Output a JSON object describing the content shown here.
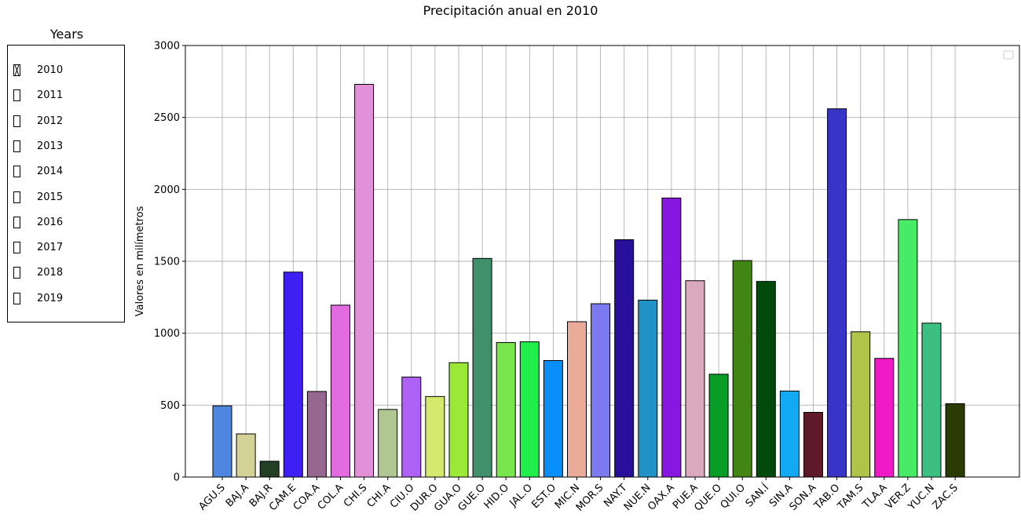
{
  "chart_data": {
    "type": "bar",
    "title": "Precipitación anual en 2010",
    "xlabel": "",
    "ylabel": "Valores en milímetros",
    "ylim": [
      0,
      3000
    ],
    "yticks": [
      0,
      500,
      1000,
      1500,
      2000,
      2500,
      3000
    ],
    "grid": true,
    "legend": "top-right",
    "categories": [
      "AGU.S",
      "BAJ.A",
      "BAJ.R",
      "CAM.E",
      "COA.A",
      "COL.A",
      "CHI.S",
      "CHI.A",
      "CIU.O",
      "DUR.O",
      "GUA.O",
      "GUE.O",
      "HID.O",
      "JAL.O",
      "EST.O",
      "MIC.N",
      "MOR.S",
      "NAY.T",
      "NUE.N",
      "OAX.A",
      "PUE.A",
      "QUE.O",
      "QUI.O",
      "SAN.Í",
      "SIN.A",
      "SON.A",
      "TAB.O",
      "TAM.S",
      "TLA.A",
      "VER.Z",
      "YUC.N",
      "ZAC.S"
    ],
    "values": [
      495,
      300,
      110,
      1425,
      595,
      1195,
      2730,
      470,
      695,
      560,
      795,
      1520,
      935,
      940,
      810,
      1080,
      1205,
      1650,
      1230,
      1940,
      1365,
      715,
      1505,
      1360,
      598,
      450,
      2560,
      1010,
      825,
      1790,
      1070,
      510
    ],
    "colors": [
      "#4f87e0",
      "#d4d296",
      "#233e24",
      "#3e1ff4",
      "#966890",
      "#e16bdf",
      "#e290d8",
      "#b0c793",
      "#ad61f5",
      "#d5e96f",
      "#9ce836",
      "#40906c",
      "#7ae64d",
      "#1fee4b",
      "#098ff9",
      "#ebab99",
      "#7b7af1",
      "#270f9b",
      "#2092c6",
      "#8817e1",
      "#dba9be",
      "#089e26",
      "#418614",
      "#024a0b",
      "#11aaf3",
      "#5e1a28",
      "#3834c7",
      "#b0c449",
      "#ee1bc6",
      "#47eb65",
      "#3cbf81",
      "#2b3c03"
    ]
  },
  "years_panel": {
    "title": "Years",
    "options": [
      {
        "label": "2010",
        "checked": true
      },
      {
        "label": "2011",
        "checked": false
      },
      {
        "label": "2012",
        "checked": false
      },
      {
        "label": "2013",
        "checked": false
      },
      {
        "label": "2014",
        "checked": false
      },
      {
        "label": "2015",
        "checked": false
      },
      {
        "label": "2016",
        "checked": false
      },
      {
        "label": "2017",
        "checked": false
      },
      {
        "label": "2018",
        "checked": false
      },
      {
        "label": "2019",
        "checked": false
      }
    ]
  }
}
